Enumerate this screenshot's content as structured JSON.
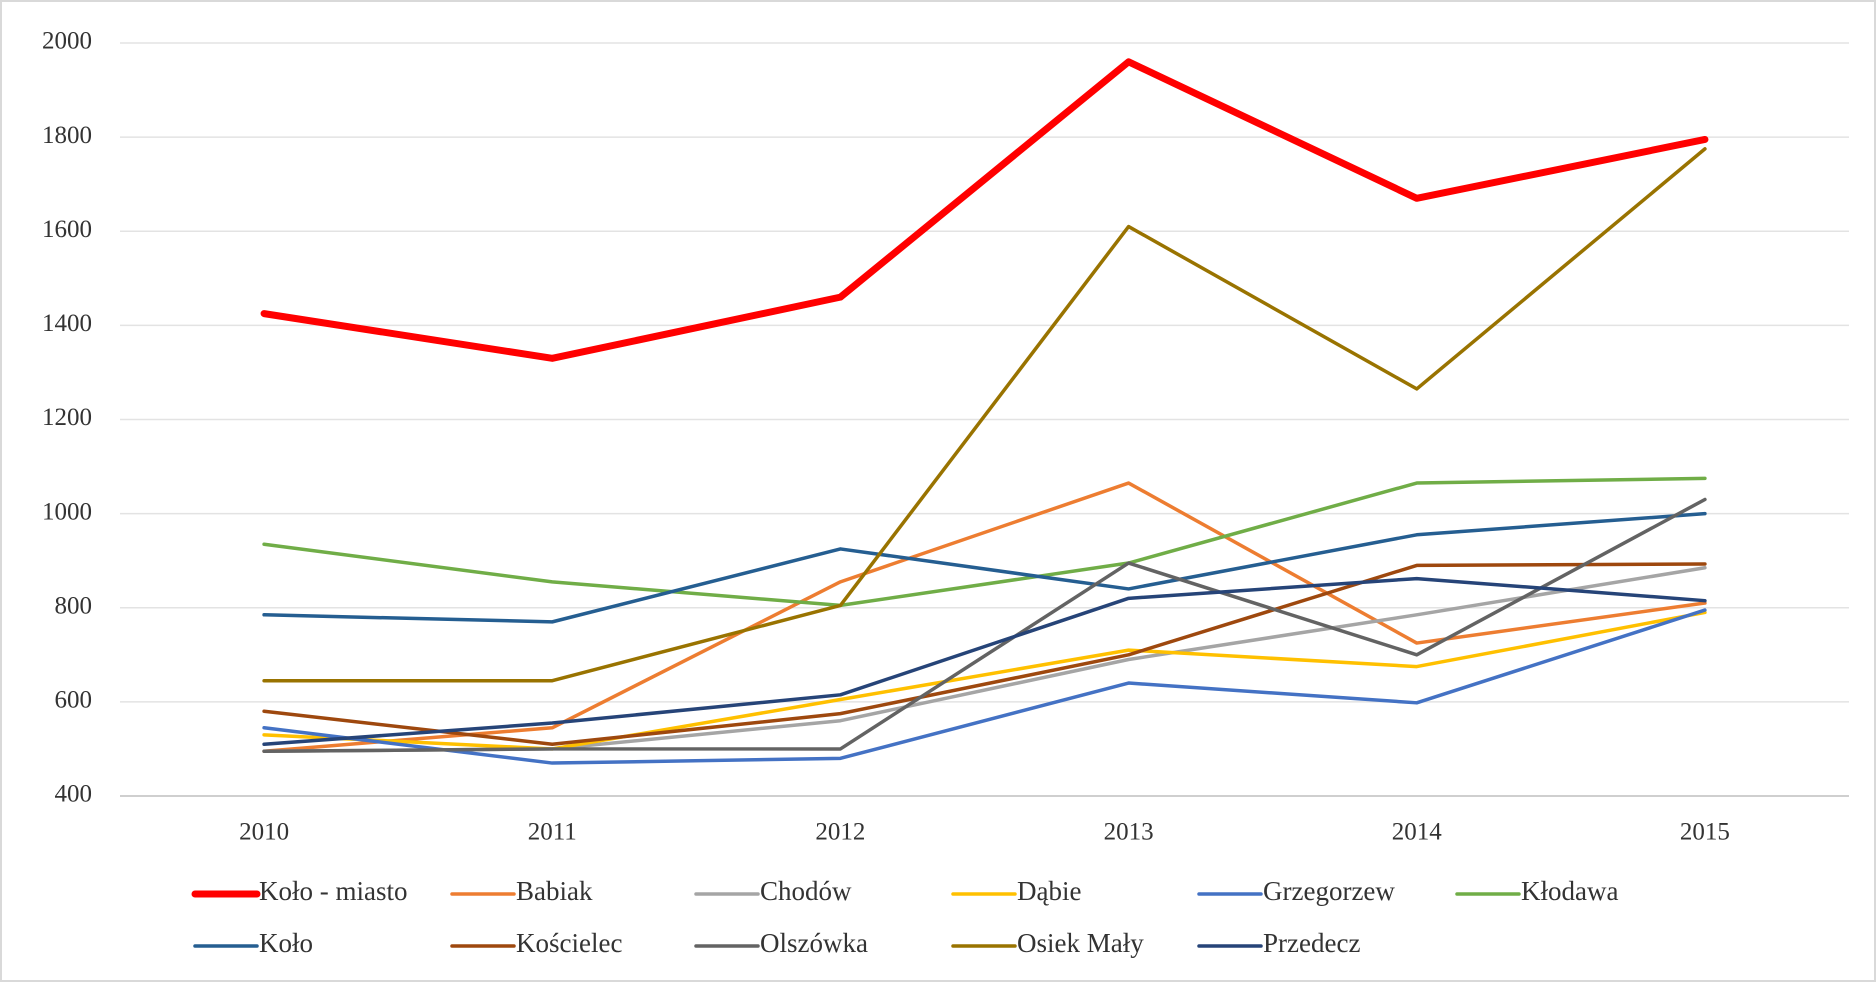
{
  "chart_data": {
    "type": "line",
    "categories": [
      "2010",
      "2011",
      "2012",
      "2013",
      "2014",
      "2015"
    ],
    "series": [
      {
        "name": "Koło - miasto",
        "color": "#ff0000",
        "line_width": 7,
        "values": [
          1425,
          1330,
          1460,
          1960,
          1670,
          1795
        ]
      },
      {
        "name": "Babiak",
        "color": "#ed7d31",
        "line_width": 3.5,
        "values": [
          495,
          545,
          855,
          1065,
          725,
          810
        ]
      },
      {
        "name": "Chodów",
        "color": "#a5a5a5",
        "line_width": 3.5,
        "values": [
          495,
          500,
          560,
          690,
          785,
          885
        ]
      },
      {
        "name": "Dąbie",
        "color": "#ffc000",
        "line_width": 3.5,
        "values": [
          530,
          500,
          605,
          710,
          675,
          790
        ]
      },
      {
        "name": "Grzegorzew",
        "color": "#4472c4",
        "line_width": 3.5,
        "values": [
          545,
          470,
          480,
          640,
          598,
          795
        ]
      },
      {
        "name": "Kłodawa",
        "color": "#70ad47",
        "line_width": 3.5,
        "values": [
          935,
          855,
          805,
          895,
          1065,
          1075
        ]
      },
      {
        "name": "Koło",
        "color": "#255e91",
        "line_width": 3.5,
        "values": [
          785,
          770,
          925,
          840,
          955,
          1000
        ]
      },
      {
        "name": "Kościelec",
        "color": "#9e480e",
        "line_width": 3.5,
        "values": [
          580,
          510,
          575,
          700,
          890,
          893
        ]
      },
      {
        "name": "Olszówka",
        "color": "#636363",
        "line_width": 3.5,
        "values": [
          495,
          500,
          500,
          895,
          700,
          1030
        ]
      },
      {
        "name": "Osiek Mały",
        "color": "#997300",
        "line_width": 3.5,
        "values": [
          645,
          645,
          805,
          1610,
          1265,
          1775
        ]
      },
      {
        "name": "Przedecz",
        "color": "#264478",
        "line_width": 3.5,
        "values": [
          510,
          555,
          615,
          820,
          862,
          815
        ]
      }
    ],
    "ylim": [
      400,
      2000
    ],
    "yticks": [
      400,
      600,
      800,
      1000,
      1200,
      1400,
      1600,
      1800,
      2000
    ],
    "grid": true,
    "legend": "bottom"
  }
}
